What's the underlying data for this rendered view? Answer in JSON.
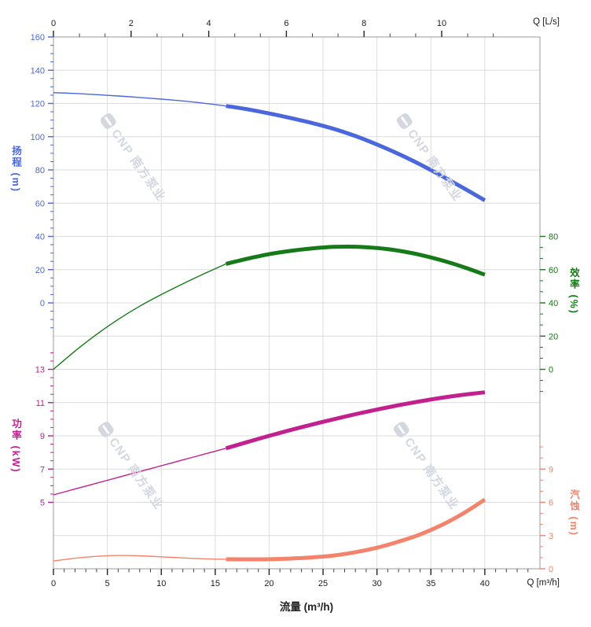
{
  "corner_labels": {
    "top_right": "Q [L/s]",
    "bottom_right": "Q [m³/h]"
  },
  "axis_titles": {
    "head": "扬程 (m)",
    "power": "功率 (kW)",
    "efficiency": "效率 (%)",
    "npsh": "汽蚀 (m)",
    "flow": "流量 (m³/h)"
  },
  "watermark": {
    "text": "CNP 南方泵业"
  },
  "colors": {
    "head": "#4a67dd",
    "efficiency": "#157a17",
    "power": "#c1208e",
    "npsh": "#f5836b",
    "grid": "#dcdcdc",
    "border": "#a9a9a9",
    "axis_text": "#222222",
    "watermark": "#d3d7e0"
  },
  "chart_data": {
    "type": "line",
    "x_bottom": {
      "label": "流量 (m³/h)",
      "unit": "m³/h",
      "range": [
        0,
        45.1
      ],
      "majors": [
        0,
        5,
        10,
        15,
        20,
        25,
        30,
        35,
        40
      ],
      "minors": [
        1,
        2,
        3,
        4,
        6,
        7,
        8,
        9,
        11,
        12,
        13,
        14,
        16,
        17,
        18,
        19,
        21,
        22,
        23,
        24,
        26,
        27,
        28,
        29,
        31,
        32,
        33,
        34,
        36,
        37,
        38,
        39,
        41,
        42,
        43,
        44
      ]
    },
    "x_top": {
      "label": "Q [L/s]",
      "unit": "L/s",
      "range": [
        0,
        12.5
      ],
      "majors": [
        0,
        2,
        4,
        6,
        8,
        10
      ],
      "minors": [
        0.67,
        1.33,
        2.67,
        3.33,
        4.67,
        5.33,
        6.67,
        7.33,
        8.67,
        9.33,
        10.67,
        11.33
      ]
    },
    "y_axes": [
      {
        "id": "head",
        "side": "left",
        "title": "扬程 (m)",
        "unit": "m",
        "range": [
          0,
          160
        ],
        "majors": [
          160,
          140,
          120,
          100,
          80,
          60,
          40,
          20,
          0
        ],
        "minors": [
          155,
          150,
          145,
          135,
          130,
          125,
          115,
          110,
          105,
          95,
          90,
          85,
          75,
          70,
          65,
          55,
          50,
          45,
          35,
          30,
          25,
          15,
          10,
          5,
          -5,
          -10,
          -15
        ]
      },
      {
        "id": "power",
        "side": "left",
        "title": "功率 (kW)",
        "unit": "kW",
        "range": [
          5,
          13
        ],
        "majors": [
          13,
          11,
          9,
          7,
          5
        ],
        "minors": [
          14,
          13.5,
          12.5,
          12,
          11.5,
          10.5,
          10,
          9.5,
          8.5,
          8,
          7.5,
          6.5,
          6,
          5.5
        ]
      },
      {
        "id": "efficiency",
        "side": "right",
        "title": "效率 (%)",
        "unit": "%",
        "range": [
          0,
          80
        ],
        "majors": [
          80,
          60,
          40,
          20,
          0
        ],
        "minors": [
          73.3,
          66.7,
          53.3,
          46.7,
          33.3,
          26.7,
          13.3,
          6.7,
          -6.7,
          -13.3
        ]
      },
      {
        "id": "npsh",
        "side": "right",
        "title": "汽蚀 (m)",
        "unit": "m",
        "range": [
          0,
          9
        ],
        "majors": [
          9,
          6,
          3,
          0
        ],
        "minors": [
          11,
          10,
          8,
          7,
          5,
          4,
          2,
          1
        ]
      }
    ],
    "series": [
      {
        "name": "head",
        "axis": "head",
        "bold_from": 16,
        "x": [
          0,
          2,
          4,
          6,
          8,
          10,
          12,
          14,
          16,
          18,
          20,
          22,
          24,
          26,
          28,
          30,
          32,
          34,
          36,
          38,
          40
        ],
        "values": [
          126.5,
          126.0,
          125.3,
          124.5,
          123.6,
          122.6,
          121.5,
          120.1,
          118.5,
          116.5,
          114.0,
          111.2,
          108.2,
          104.7,
          100.4,
          95.3,
          89.6,
          83.3,
          76.4,
          69.2,
          61.7
        ]
      },
      {
        "name": "efficiency",
        "axis": "efficiency",
        "bold_from": 16,
        "x": [
          0,
          2,
          4,
          6,
          8,
          10,
          12,
          14,
          16,
          18,
          20,
          22,
          24,
          26,
          28,
          30,
          32,
          34,
          36,
          38,
          40
        ],
        "values": [
          0,
          11,
          21,
          30,
          38,
          45,
          51.5,
          57.6,
          63.5,
          66.6,
          69.3,
          71.3,
          72.8,
          73.7,
          73.8,
          73.0,
          71.4,
          68.9,
          65.6,
          61.6,
          57.0
        ]
      },
      {
        "name": "power",
        "axis": "power",
        "bold_from": 16,
        "x": [
          0,
          2,
          4,
          6,
          8,
          10,
          12,
          14,
          16,
          18,
          20,
          22,
          24,
          26,
          28,
          30,
          32,
          34,
          36,
          38,
          40
        ],
        "values": [
          5.45,
          5.8,
          6.15,
          6.5,
          6.85,
          7.2,
          7.55,
          7.9,
          8.25,
          8.63,
          9.0,
          9.35,
          9.68,
          10.0,
          10.3,
          10.58,
          10.84,
          11.08,
          11.29,
          11.47,
          11.62
        ]
      },
      {
        "name": "npsh",
        "axis": "npsh",
        "bold_from": 16,
        "x": [
          0,
          2,
          4,
          6,
          8,
          10,
          12,
          14,
          16,
          18,
          20,
          22,
          24,
          26,
          28,
          30,
          32,
          34,
          36,
          38,
          40
        ],
        "values": [
          0.7,
          0.95,
          1.12,
          1.2,
          1.17,
          1.08,
          0.98,
          0.9,
          0.86,
          0.85,
          0.86,
          0.92,
          1.03,
          1.2,
          1.5,
          1.9,
          2.45,
          3.1,
          3.95,
          5.0,
          6.25
        ]
      }
    ],
    "grid": true,
    "legend": "none"
  }
}
